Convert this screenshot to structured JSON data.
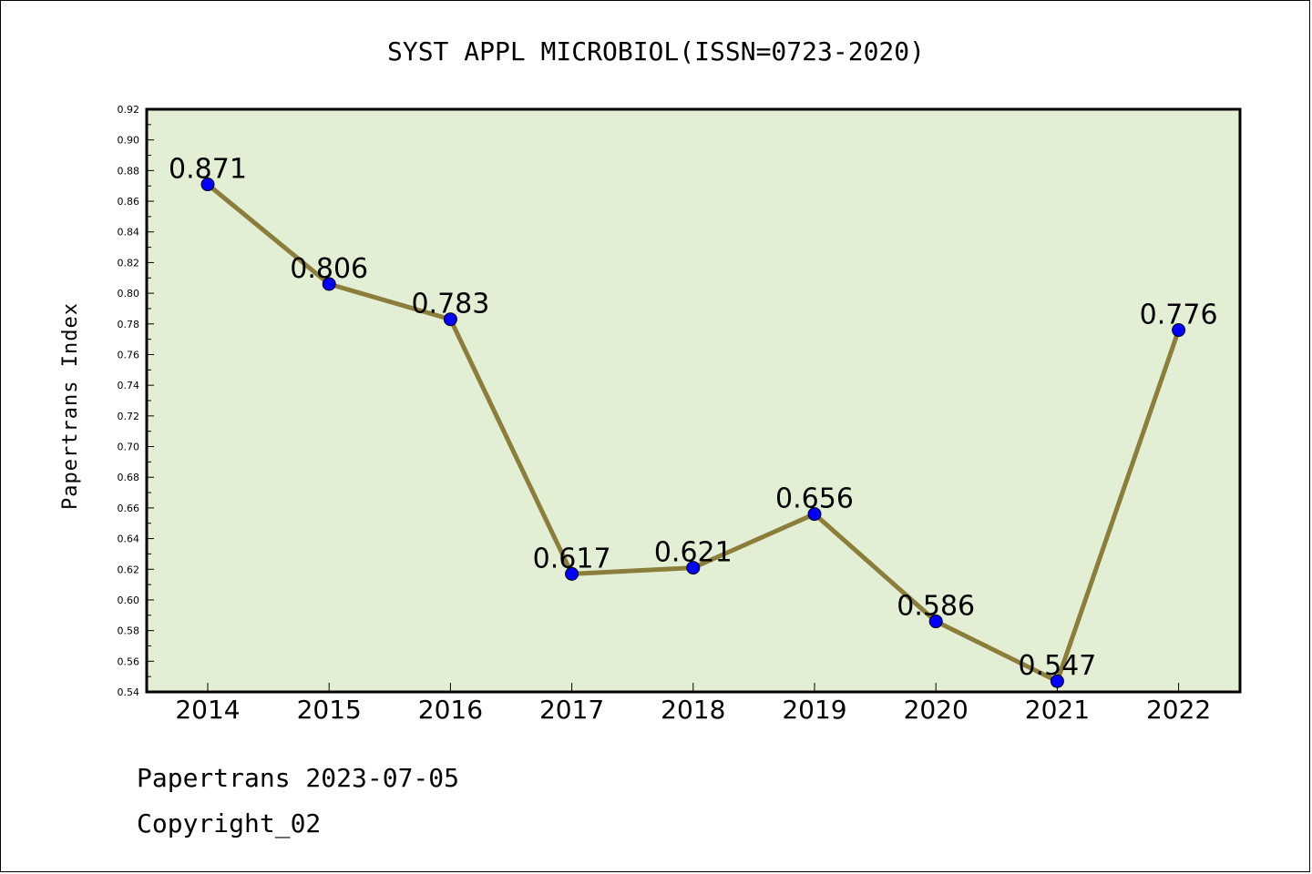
{
  "chart_data": {
    "type": "line",
    "title": "SYST APPL MICROBIOL(ISSN=0723-2020)",
    "ylabel": "Papertrans Index",
    "xlabel": "",
    "categories": [
      "2014",
      "2015",
      "2016",
      "2017",
      "2018",
      "2019",
      "2020",
      "2021",
      "2022"
    ],
    "values": [
      0.871,
      0.806,
      0.783,
      0.617,
      0.621,
      0.656,
      0.586,
      0.547,
      0.776
    ],
    "data_labels": [
      "0.871",
      "0.806",
      "0.783",
      "0.617",
      "0.621",
      "0.656",
      "0.586",
      "0.547",
      "0.776"
    ],
    "ylim": [
      0.54,
      0.92
    ],
    "yticks": [
      "0.54",
      "0.56",
      "0.58",
      "0.60",
      "0.62",
      "0.64",
      "0.66",
      "0.68",
      "0.70",
      "0.72",
      "0.74",
      "0.76",
      "0.78",
      "0.80",
      "0.82",
      "0.84",
      "0.86",
      "0.88",
      "0.90",
      "0.92"
    ],
    "grid": false,
    "colors": {
      "plot_background": "#e2efd5",
      "line": "#8b7d3a",
      "marker": "#0000ff"
    }
  },
  "footer": {
    "date_line": "Papertrans 2023-07-05",
    "copyright": "Copyright_02"
  }
}
